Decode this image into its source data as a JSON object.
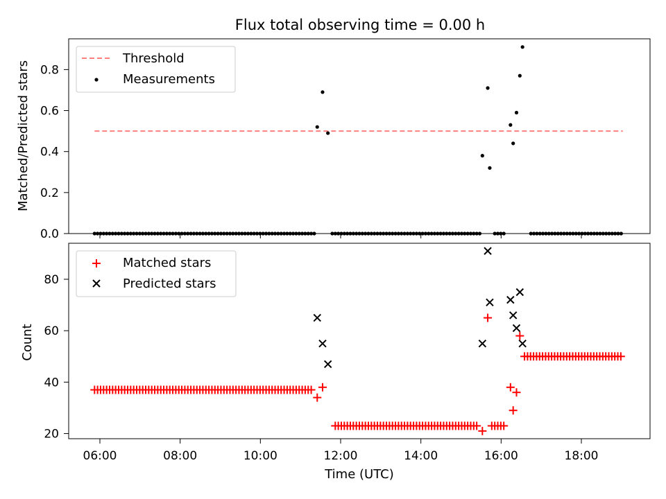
{
  "title": "Flux total observing time = 0.00 h",
  "chart_data": [
    {
      "type": "scatter",
      "panel": "top",
      "ylabel": "Matched/Predicted stars",
      "ylim": [
        0.0,
        0.95
      ],
      "yticks": [
        0.0,
        0.2,
        0.4,
        0.6,
        0.8
      ],
      "ytick_labels": [
        "0.0",
        "0.2",
        "0.4",
        "0.6",
        "0.8"
      ],
      "legend_position": "upper-left",
      "series": [
        {
          "name": "Threshold",
          "kind": "line",
          "style": "dashed",
          "color": "#ff7f7f",
          "x": [
            "05:52",
            "19:02"
          ],
          "y": [
            0.5,
            0.5
          ]
        },
        {
          "name": "Measurements",
          "kind": "points",
          "color": "#000000",
          "points": [
            {
              "x": "11:25",
              "y": 0.52
            },
            {
              "x": "11:33",
              "y": 0.69
            },
            {
              "x": "11:41",
              "y": 0.49
            },
            {
              "x": "15:32",
              "y": 0.38
            },
            {
              "x": "15:40",
              "y": 0.71
            },
            {
              "x": "15:43",
              "y": 0.32
            },
            {
              "x": "16:14",
              "y": 0.53
            },
            {
              "x": "16:18",
              "y": 0.44
            },
            {
              "x": "16:23",
              "y": 0.59
            },
            {
              "x": "16:28",
              "y": 0.77
            },
            {
              "x": "16:32",
              "y": 0.91
            }
          ],
          "zero_range": {
            "from": "05:52",
            "to": "19:02",
            "y": 0.0,
            "except_from": "11:23",
            "except_to": "11:45"
          }
        }
      ]
    },
    {
      "type": "scatter",
      "panel": "bottom",
      "xlabel": "Time (UTC)",
      "ylabel": "Count",
      "ylim": [
        18,
        94
      ],
      "xlim": [
        "05:12",
        "19:30"
      ],
      "xticks": [
        "06:00",
        "08:00",
        "10:00",
        "12:00",
        "14:00",
        "16:00",
        "18:00"
      ],
      "yticks": [
        20,
        40,
        60,
        80
      ],
      "ytick_labels": [
        "20",
        "40",
        "60",
        "80"
      ],
      "legend_position": "upper-left",
      "series": [
        {
          "name": "Matched stars",
          "marker": "plus",
          "color": "#ff0000",
          "runs": [
            {
              "from": "05:52",
              "to": "11:20",
              "y": 37
            },
            {
              "from": "11:52",
              "to": "15:25",
              "y": 23
            },
            {
              "from": "15:46",
              "to": "16:08",
              "y": 23
            },
            {
              "from": "16:35",
              "to": "19:02",
              "y": 50
            }
          ],
          "points": [
            {
              "x": "11:25",
              "y": 34
            },
            {
              "x": "11:33",
              "y": 38
            },
            {
              "x": "15:32",
              "y": 21
            },
            {
              "x": "15:40",
              "y": 65
            },
            {
              "x": "16:14",
              "y": 38
            },
            {
              "x": "16:18",
              "y": 29
            },
            {
              "x": "16:23",
              "y": 36
            },
            {
              "x": "16:28",
              "y": 58
            }
          ]
        },
        {
          "name": "Predicted stars",
          "marker": "x",
          "color": "#000000",
          "points": [
            {
              "x": "11:25",
              "y": 65
            },
            {
              "x": "11:33",
              "y": 55
            },
            {
              "x": "11:41",
              "y": 47
            },
            {
              "x": "15:32",
              "y": 55
            },
            {
              "x": "15:40",
              "y": 91
            },
            {
              "x": "15:43",
              "y": 71
            },
            {
              "x": "16:14",
              "y": 72
            },
            {
              "x": "16:18",
              "y": 66
            },
            {
              "x": "16:23",
              "y": 61
            },
            {
              "x": "16:28",
              "y": 75
            },
            {
              "x": "16:32",
              "y": 55
            }
          ]
        }
      ]
    }
  ]
}
